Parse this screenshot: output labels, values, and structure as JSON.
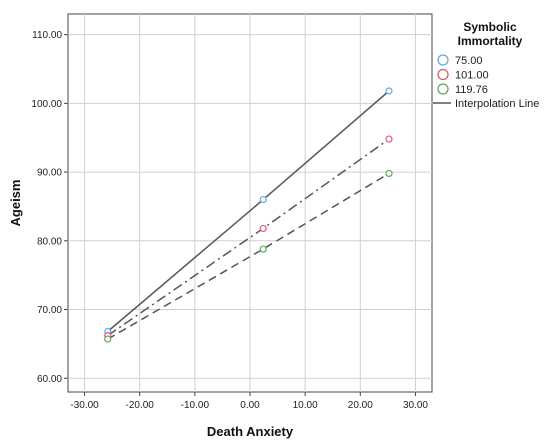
{
  "chart_data": {
    "type": "line",
    "xlabel": "Death Anxiety",
    "ylabel": "Ageism",
    "xlim": [
      -33,
      33
    ],
    "ylim": [
      58,
      113
    ],
    "xticks": [
      "-30.00",
      "-20.00",
      "-10.00",
      "0.00",
      "10.00",
      "20.00",
      "30.00"
    ],
    "yticks": [
      "60.00",
      "70.00",
      "80.00",
      "90.00",
      "100.00",
      "110.00"
    ],
    "grid": true,
    "legend": {
      "title_line1": "Symbolic",
      "title_line2": "Immortality",
      "placement": "right",
      "interpolation_label": "Interpolation Line"
    },
    "series": [
      {
        "name": "75.00",
        "color": "#6aa6e0",
        "dash": "solid",
        "x": [
          -25.8,
          2.4,
          25.2
        ],
        "y": [
          66.8,
          86.0,
          101.8
        ]
      },
      {
        "name": "101.00",
        "color": "#e0576f",
        "dash": "dashdot",
        "x": [
          -25.8,
          2.4,
          25.2
        ],
        "y": [
          66.2,
          81.8,
          94.8
        ]
      },
      {
        "name": "119.76",
        "color": "#5aa85a",
        "dash": "dashed",
        "x": [
          -25.8,
          2.4,
          25.2
        ],
        "y": [
          65.7,
          78.8,
          89.8
        ]
      }
    ]
  }
}
